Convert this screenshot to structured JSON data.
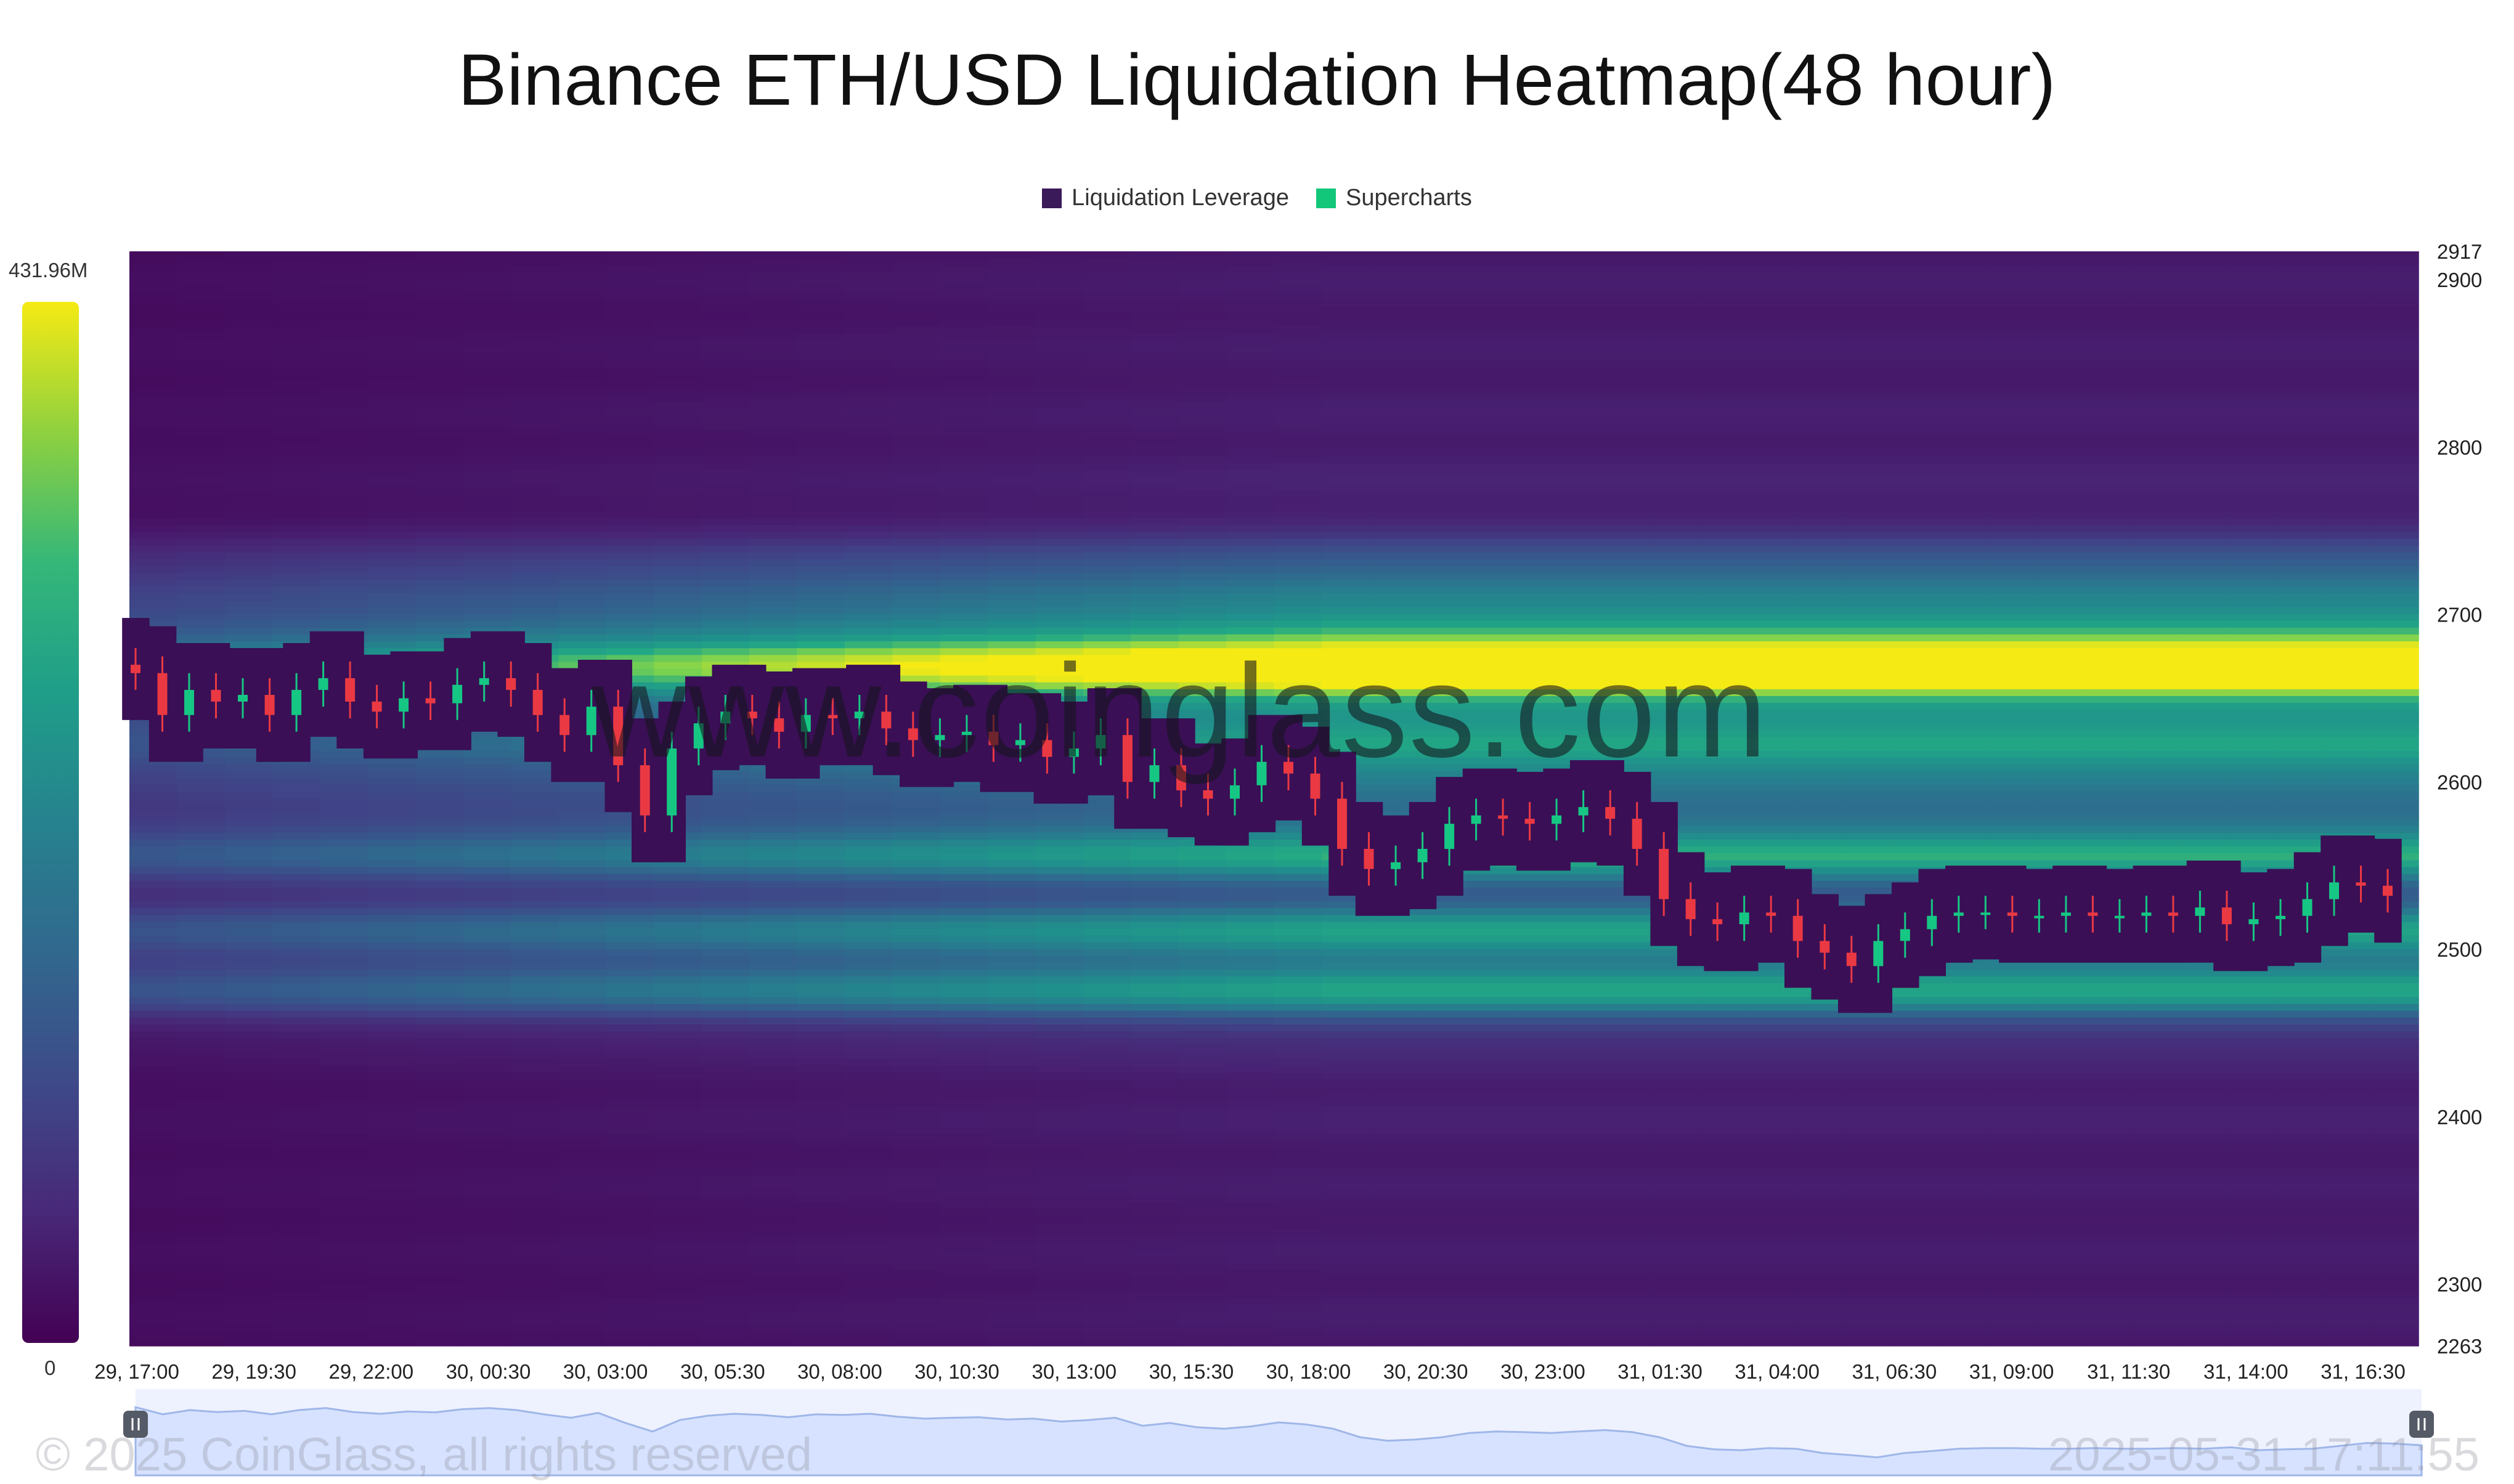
{
  "chart_data": {
    "type": "heatmap",
    "title": "Binance ETH/USD Liquidation Heatmap(48 hour)",
    "legend": [
      {
        "label": "Liquidation Leverage",
        "color": "#3b1a5a"
      },
      {
        "label": "Supercharts",
        "color": "#12c77a"
      }
    ],
    "legend_position": "top-center",
    "colorbar": {
      "max_label": "431.96M",
      "min_label": "0",
      "colors": [
        "#f5ea14",
        "#8fd13f",
        "#35b779",
        "#1f9e89",
        "#26828e",
        "#31688e",
        "#3e4a89",
        "#482878",
        "#440154"
      ]
    },
    "y_axis": {
      "min": 2263,
      "max": 2917,
      "tick_labels": [
        "2917",
        "2900",
        "2800",
        "2700",
        "2600",
        "2500",
        "2400",
        "2300",
        "2263"
      ],
      "tick_values": [
        2917,
        2900,
        2800,
        2700,
        2600,
        2500,
        2400,
        2300,
        2263
      ]
    },
    "x_axis": {
      "tick_labels": [
        "29, 17:00",
        "29, 19:30",
        "29, 22:00",
        "30, 00:30",
        "30, 03:00",
        "30, 05:30",
        "30, 08:00",
        "30, 10:30",
        "30, 13:00",
        "30, 15:30",
        "30, 18:00",
        "30, 20:30",
        "30, 23:00",
        "31, 01:30",
        "31, 04:00",
        "31, 06:30",
        "31, 09:00",
        "31, 11:30",
        "31, 14:00",
        "31, 16:30"
      ]
    },
    "price_path": [
      2665,
      2640,
      2655,
      2648,
      2652,
      2640,
      2655,
      2662,
      2648,
      2642,
      2650,
      2647,
      2658,
      2662,
      2655,
      2640,
      2628,
      2645,
      2610,
      2580,
      2620,
      2635,
      2642,
      2638,
      2630,
      2640,
      2638,
      2642,
      2632,
      2625,
      2628,
      2630,
      2622,
      2625,
      2615,
      2620,
      2628,
      2600,
      2610,
      2595,
      2590,
      2598,
      2612,
      2605,
      2590,
      2560,
      2548,
      2552,
      2560,
      2575,
      2580,
      2578,
      2575,
      2580,
      2585,
      2578,
      2560,
      2530,
      2518,
      2515,
      2522,
      2520,
      2505,
      2498,
      2490,
      2505,
      2512,
      2520,
      2522,
      2522,
      2520,
      2520,
      2522,
      2520,
      2520,
      2522,
      2520,
      2525,
      2515,
      2518,
      2520,
      2530,
      2540,
      2538,
      2532
    ],
    "high_liquidity_bands": [
      {
        "price": 2680,
        "intensity": 1.0
      },
      {
        "price": 2655,
        "intensity": 0.72
      },
      {
        "price": 2615,
        "intensity": 0.55
      },
      {
        "price": 2560,
        "intensity": 0.6
      },
      {
        "price": 2475,
        "intensity": 0.62
      },
      {
        "price": 2510,
        "intensity": 0.55
      },
      {
        "price": 2720,
        "intensity": 0.45
      }
    ]
  },
  "watermark": "www.coinglass.com",
  "copyright": "© 2025 CoinGlass, all rights reserved",
  "timestamp": "2025-05-31 17:11:55"
}
